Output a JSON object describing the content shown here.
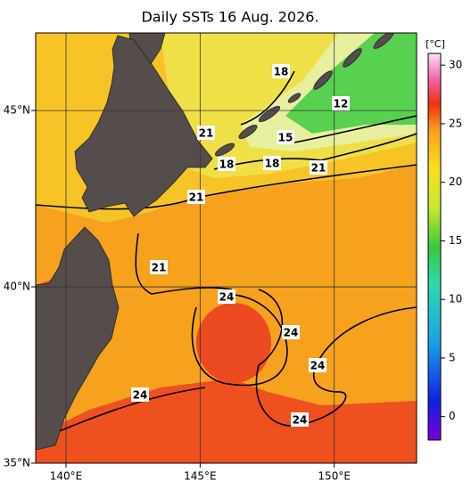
{
  "title": "Daily SSTs 16 Aug. 2026.",
  "map": {
    "xlim": [
      138.87,
      153.07
    ],
    "ylim": [
      35,
      47.2
    ],
    "xticks": [
      {
        "value": 140,
        "label": "140°E"
      },
      {
        "value": 145,
        "label": "145°E"
      },
      {
        "value": 150,
        "label": "150°E"
      }
    ],
    "yticks": [
      {
        "value": 35,
        "label": "35°N"
      },
      {
        "value": 40,
        "label": "40°N"
      },
      {
        "value": 45,
        "label": "45°N"
      }
    ],
    "grid": true
  },
  "colorbar": {
    "unit": "[°C]",
    "lim": [
      -2,
      31
    ],
    "ticks": [
      0,
      5,
      10,
      15,
      20,
      25,
      30
    ]
  },
  "contour_labels": [
    18,
    12,
    21,
    15,
    18,
    18,
    21,
    21,
    21,
    24,
    24,
    24,
    24,
    24
  ]
}
